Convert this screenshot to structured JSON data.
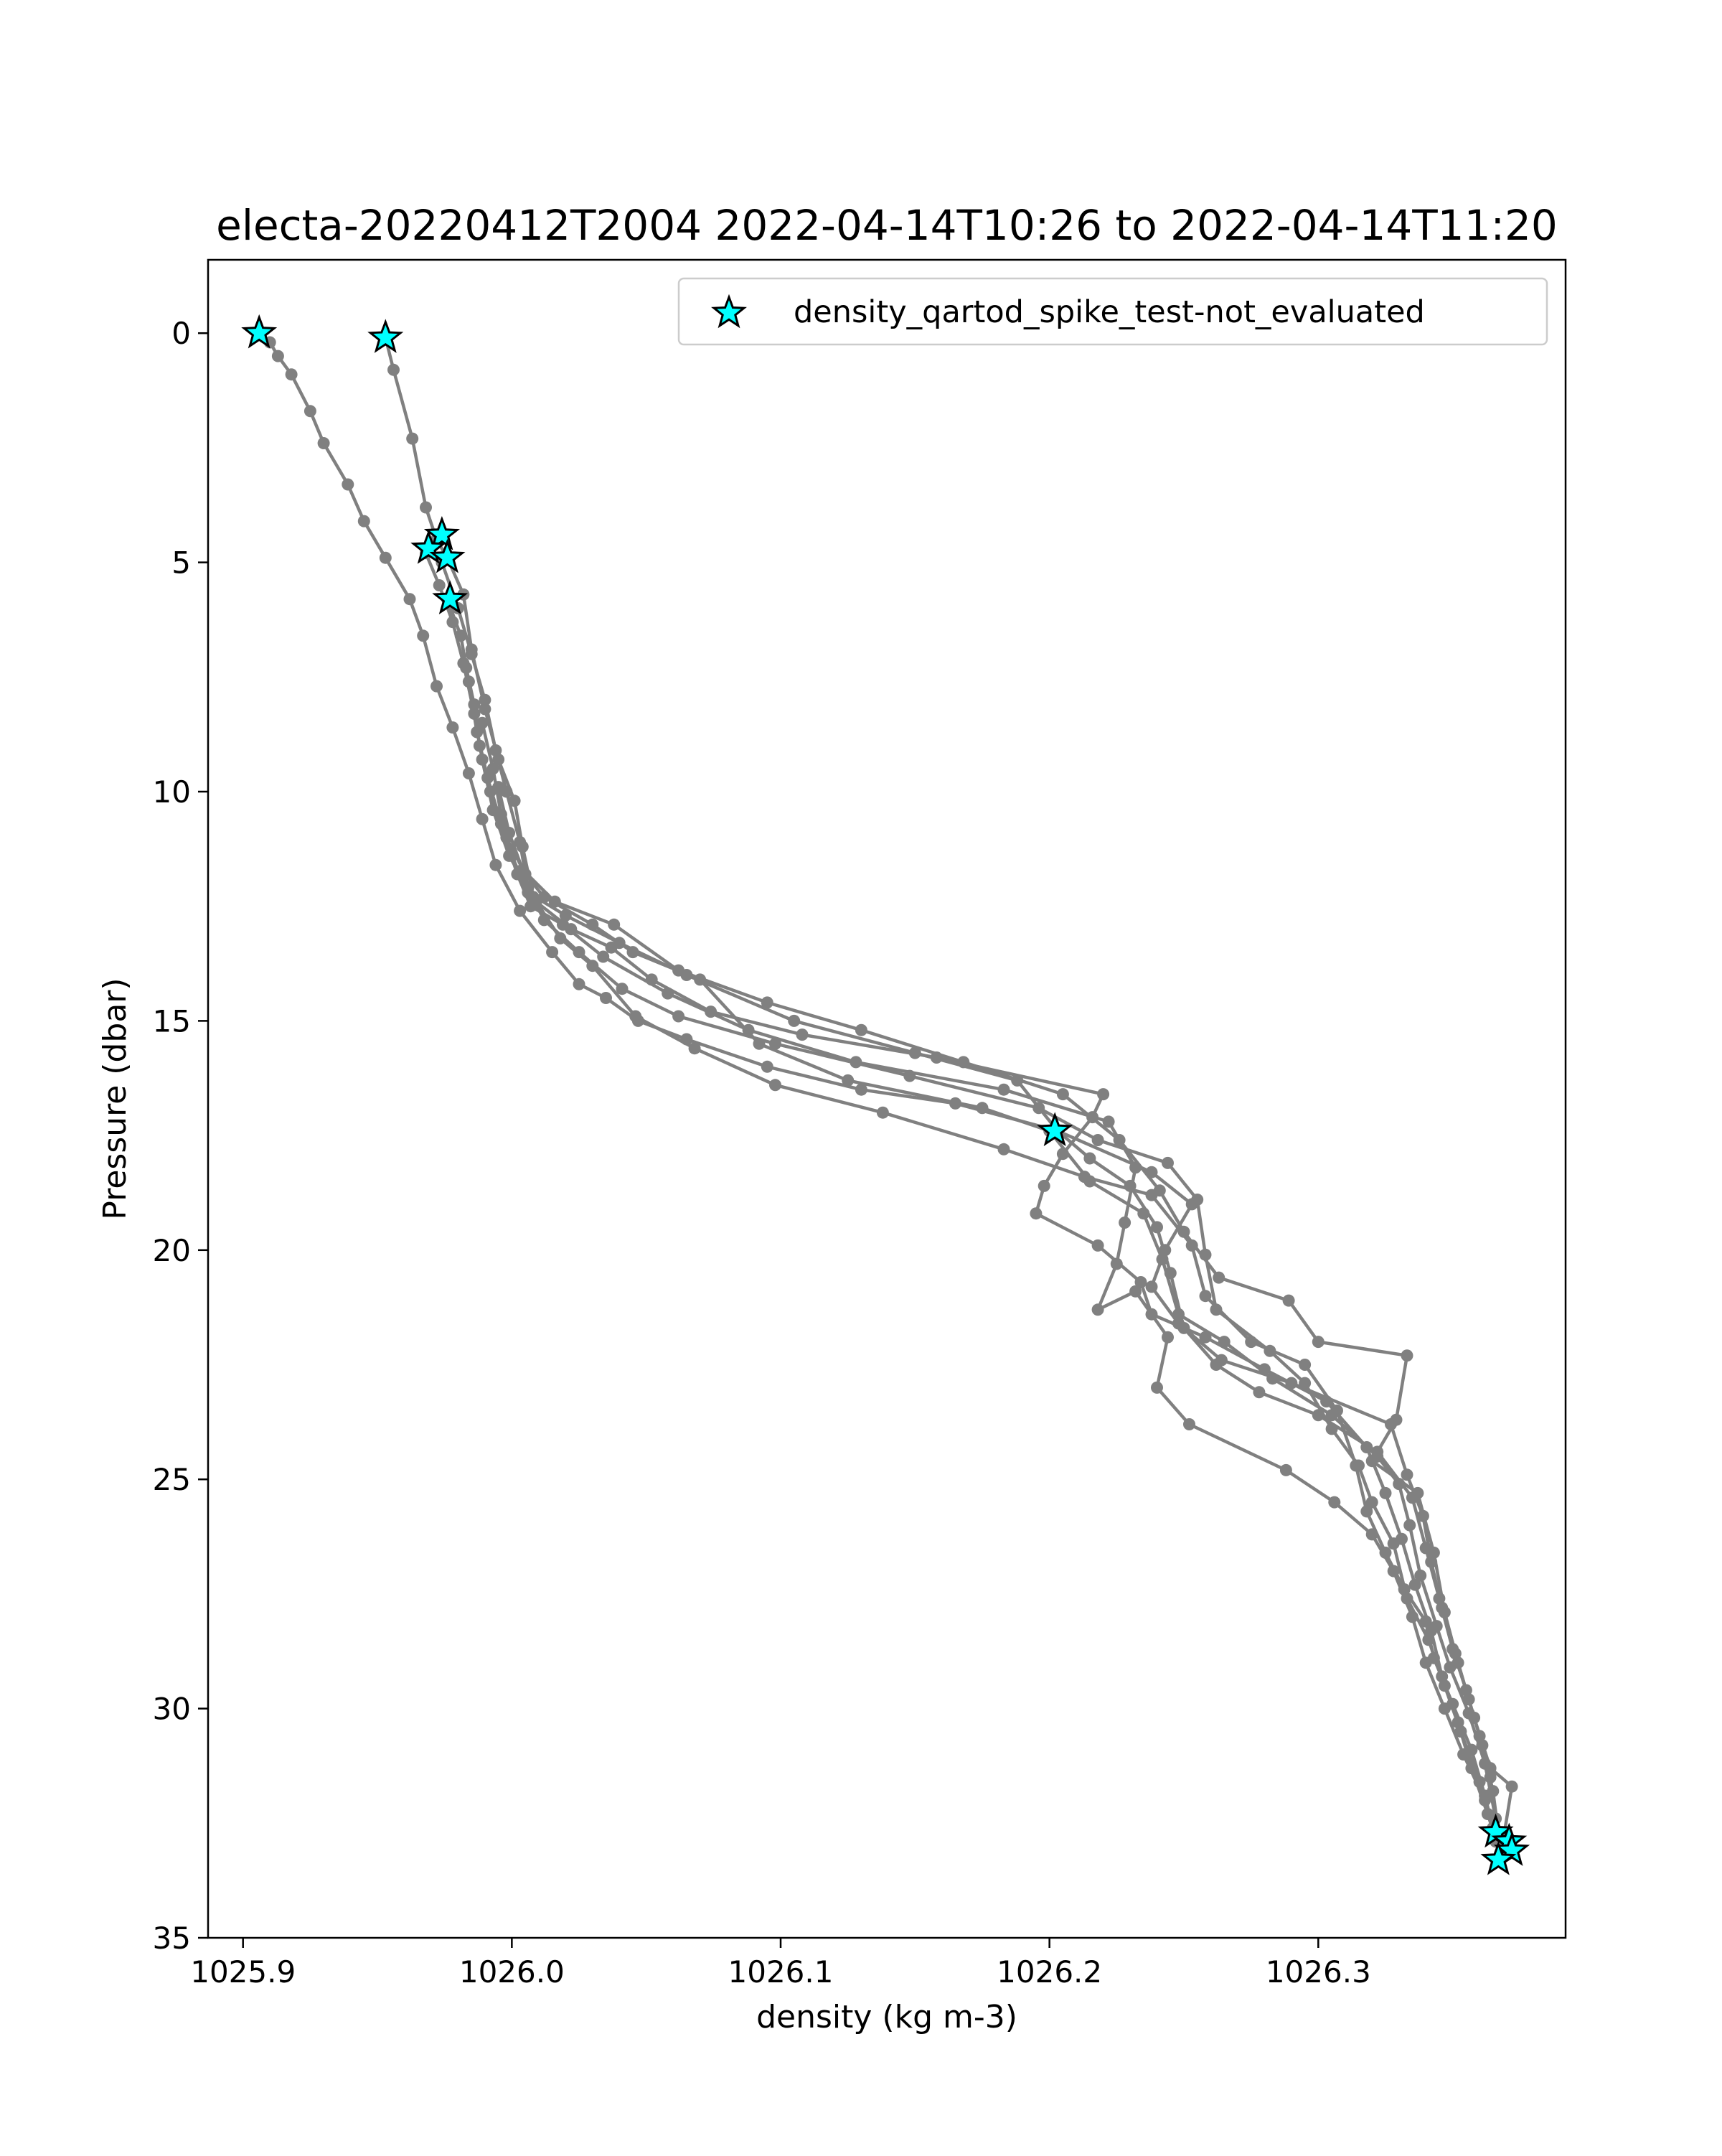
{
  "chart_data": {
    "type": "line",
    "title": "electa-20220412T2004 2022-04-14T10:26 to 2022-04-14T11:20",
    "xlabel": "density (kg m-3)",
    "ylabel": "Pressure (dbar)",
    "xlim": [
      1025.887,
      1026.392
    ],
    "ylim": [
      35,
      -1.6
    ],
    "y_inverted": true,
    "grid": false,
    "legend_position": "top-right",
    "x_ticks": [
      1025.9,
      1026.0,
      1026.1,
      1026.2,
      1026.3
    ],
    "x_tick_labels": [
      "1025.9",
      "1026.0",
      "1026.1",
      "1026.2",
      "1026.3"
    ],
    "y_ticks": [
      0,
      5,
      10,
      15,
      20,
      25,
      30,
      35
    ],
    "y_tick_labels": [
      "0",
      "5",
      "10",
      "15",
      "20",
      "25",
      "30",
      "35"
    ],
    "colors": {
      "profile_line": "#808080",
      "flag_marker": "#00ffff",
      "flag_edge": "#000000"
    },
    "series": [
      {
        "name": "",
        "style": "line-markers",
        "color": "#808080",
        "points": [
          [
            1025.906,
            0.0
          ],
          [
            1025.91,
            0.2
          ],
          [
            1025.913,
            0.5
          ],
          [
            1025.918,
            0.9
          ],
          [
            1025.925,
            1.7
          ],
          [
            1025.93,
            2.4
          ],
          [
            1025.939,
            3.3
          ],
          [
            1025.945,
            4.1
          ],
          [
            1025.953,
            4.9
          ],
          [
            1025.962,
            5.8
          ],
          [
            1025.967,
            6.6
          ],
          [
            1025.972,
            7.7
          ],
          [
            1025.978,
            8.6
          ],
          [
            1025.984,
            9.6
          ],
          [
            1025.989,
            10.6
          ],
          [
            1025.994,
            11.6
          ],
          [
            1026.003,
            12.6
          ],
          [
            1026.015,
            13.5
          ],
          [
            1026.025,
            14.2
          ],
          [
            1026.035,
            14.5
          ],
          [
            1026.047,
            15.0
          ],
          [
            1026.065,
            15.4
          ],
          [
            1026.095,
            16.0
          ],
          [
            1026.13,
            16.5
          ],
          [
            1026.165,
            16.8
          ],
          [
            1026.203,
            17.4
          ],
          [
            1026.215,
            18.0
          ],
          [
            1026.23,
            18.6
          ],
          [
            1026.24,
            19.5
          ],
          [
            1026.245,
            20.5
          ],
          [
            1026.25,
            21.7
          ],
          [
            1026.262,
            22.5
          ],
          [
            1026.278,
            23.1
          ],
          [
            1026.3,
            23.6
          ],
          [
            1026.322,
            24.4
          ],
          [
            1026.335,
            25.4
          ],
          [
            1026.34,
            26.5
          ],
          [
            1026.345,
            27.6
          ],
          [
            1026.35,
            28.7
          ],
          [
            1026.355,
            29.6
          ],
          [
            1026.36,
            30.6
          ],
          [
            1026.364,
            31.5
          ],
          [
            1026.367,
            32.7
          ],
          [
            1026.37,
            32.8
          ],
          [
            1026.371,
            33.0
          ],
          [
            1026.367,
            33.3
          ]
        ]
      },
      {
        "name": "",
        "style": "line-markers",
        "color": "#808080",
        "points": [
          [
            1025.953,
            0.1
          ],
          [
            1025.956,
            0.8
          ],
          [
            1025.963,
            2.3
          ],
          [
            1025.968,
            3.8
          ],
          [
            1025.972,
            4.5
          ],
          [
            1025.976,
            4.9
          ],
          [
            1025.982,
            5.7
          ],
          [
            1025.985,
            6.9
          ],
          [
            1025.99,
            8.2
          ],
          [
            1025.995,
            9.3
          ],
          [
            1026.001,
            10.2
          ],
          [
            1026.004,
            11.2
          ],
          [
            1026.008,
            12.3
          ],
          [
            1026.018,
            13.2
          ],
          [
            1026.03,
            13.8
          ],
          [
            1026.046,
            14.9
          ],
          [
            1026.068,
            15.6
          ],
          [
            1026.098,
            16.4
          ],
          [
            1026.138,
            17.0
          ],
          [
            1026.183,
            17.8
          ],
          [
            1026.213,
            18.4
          ],
          [
            1026.238,
            18.8
          ],
          [
            1026.253,
            19.9
          ],
          [
            1026.258,
            21.0
          ],
          [
            1026.275,
            22.0
          ],
          [
            1026.295,
            22.5
          ],
          [
            1026.307,
            23.5
          ],
          [
            1026.314,
            24.7
          ],
          [
            1026.318,
            25.7
          ],
          [
            1026.325,
            26.6
          ],
          [
            1026.332,
            27.4
          ],
          [
            1026.34,
            28.1
          ],
          [
            1026.343,
            28.9
          ],
          [
            1026.35,
            29.9
          ],
          [
            1026.357,
            30.9
          ],
          [
            1026.362,
            31.9
          ],
          [
            1026.365,
            32.6
          ]
        ]
      },
      {
        "name": "",
        "style": "line-markers",
        "color": "#808080",
        "points": [
          [
            1025.968,
            4.8
          ],
          [
            1025.973,
            5.5
          ],
          [
            1025.978,
            6.3
          ],
          [
            1025.982,
            7.2
          ],
          [
            1025.986,
            8.3
          ],
          [
            1025.989,
            9.3
          ],
          [
            1025.993,
            10.4
          ],
          [
            1025.999,
            11.4
          ],
          [
            1026.009,
            12.4
          ],
          [
            1026.022,
            13.0
          ],
          [
            1026.037,
            13.4
          ],
          [
            1026.052,
            14.1
          ],
          [
            1026.074,
            14.8
          ],
          [
            1026.108,
            15.3
          ],
          [
            1026.158,
            15.8
          ],
          [
            1026.22,
            16.6
          ],
          [
            1026.216,
            17.1
          ],
          [
            1026.205,
            17.9
          ],
          [
            1026.198,
            18.6
          ],
          [
            1026.195,
            19.2
          ],
          [
            1026.218,
            19.9
          ],
          [
            1026.234,
            20.7
          ],
          [
            1026.238,
            21.4
          ],
          [
            1026.258,
            21.9
          ],
          [
            1026.28,
            22.6
          ],
          [
            1026.303,
            23.3
          ],
          [
            1026.318,
            24.3
          ],
          [
            1026.325,
            25.3
          ],
          [
            1026.331,
            26.3
          ],
          [
            1026.336,
            27.3
          ],
          [
            1026.342,
            28.3
          ],
          [
            1026.346,
            29.3
          ],
          [
            1026.352,
            30.3
          ],
          [
            1026.357,
            31.3
          ],
          [
            1026.363,
            32.3
          ],
          [
            1026.368,
            33.2
          ]
        ]
      },
      {
        "name": "",
        "style": "line-markers",
        "color": "#808080",
        "points": [
          [
            1025.974,
            5.0
          ],
          [
            1025.98,
            6.0
          ],
          [
            1025.985,
            7.0
          ],
          [
            1025.99,
            8.0
          ],
          [
            1025.994,
            9.1
          ],
          [
            1025.998,
            10.0
          ],
          [
            1026.003,
            11.1
          ],
          [
            1026.006,
            12.1
          ],
          [
            1026.012,
            12.8
          ],
          [
            1026.025,
            13.5
          ],
          [
            1026.041,
            14.3
          ],
          [
            1026.062,
            14.9
          ],
          [
            1026.098,
            15.5
          ],
          [
            1026.148,
            16.2
          ],
          [
            1026.196,
            16.9
          ],
          [
            1026.218,
            17.6
          ],
          [
            1026.244,
            18.1
          ],
          [
            1026.255,
            18.9
          ],
          [
            1026.258,
            20.1
          ],
          [
            1026.262,
            21.3
          ],
          [
            1026.282,
            22.2
          ],
          [
            1026.295,
            22.9
          ],
          [
            1026.305,
            23.9
          ],
          [
            1026.315,
            24.7
          ],
          [
            1026.32,
            25.5
          ],
          [
            1026.328,
            26.4
          ],
          [
            1026.333,
            27.6
          ],
          [
            1026.341,
            28.5
          ],
          [
            1026.347,
            29.5
          ],
          [
            1026.353,
            30.5
          ],
          [
            1026.36,
            31.6
          ],
          [
            1026.366,
            32.8
          ]
        ]
      },
      {
        "name": "",
        "style": "line-markers",
        "color": "#808080",
        "points": [
          [
            1025.976,
            5.8
          ],
          [
            1025.981,
            6.6
          ],
          [
            1025.984,
            7.6
          ],
          [
            1025.987,
            8.7
          ],
          [
            1025.991,
            9.7
          ],
          [
            1025.996,
            10.7
          ],
          [
            1026.002,
            11.8
          ],
          [
            1026.007,
            12.5
          ],
          [
            1026.019,
            12.9
          ],
          [
            1026.034,
            13.6
          ],
          [
            1026.058,
            14.4
          ],
          [
            1026.088,
            15.2
          ],
          [
            1026.128,
            15.9
          ],
          [
            1026.183,
            16.5
          ],
          [
            1026.222,
            17.2
          ],
          [
            1026.232,
            18.2
          ],
          [
            1026.228,
            19.4
          ],
          [
            1026.225,
            20.3
          ],
          [
            1026.218,
            21.3
          ],
          [
            1026.232,
            20.9
          ],
          [
            1026.244,
            21.9
          ],
          [
            1026.24,
            23.0
          ],
          [
            1026.252,
            23.8
          ],
          [
            1026.288,
            24.8
          ],
          [
            1026.306,
            25.5
          ],
          [
            1026.32,
            26.2
          ],
          [
            1026.328,
            27.0
          ],
          [
            1026.335,
            28.0
          ],
          [
            1026.34,
            29.0
          ],
          [
            1026.347,
            30.0
          ],
          [
            1026.354,
            31.0
          ],
          [
            1026.362,
            32.0
          ],
          [
            1026.366,
            32.9
          ]
        ]
      },
      {
        "name": "",
        "style": "line-markers",
        "color": "#808080",
        "points": [
          [
            1025.983,
            7.3
          ],
          [
            1025.986,
            8.1
          ],
          [
            1025.988,
            9.0
          ],
          [
            1025.992,
            10.0
          ],
          [
            1025.998,
            11.0
          ],
          [
            1026.005,
            11.8
          ],
          [
            1026.012,
            12.3
          ],
          [
            1026.03,
            12.9
          ],
          [
            1026.045,
            13.5
          ],
          [
            1026.07,
            14.1
          ],
          [
            1026.092,
            15.5
          ],
          [
            1026.125,
            16.3
          ],
          [
            1026.175,
            16.9
          ],
          [
            1026.2,
            17.4
          ],
          [
            1026.215,
            18.5
          ],
          [
            1026.235,
            19.2
          ],
          [
            1026.242,
            20.2
          ],
          [
            1026.248,
            21.4
          ],
          [
            1026.265,
            22.0
          ],
          [
            1026.283,
            22.8
          ],
          [
            1026.305,
            23.6
          ],
          [
            1026.322,
            24.5
          ],
          [
            1026.33,
            25.1
          ],
          [
            1026.334,
            26.0
          ],
          [
            1026.338,
            27.1
          ],
          [
            1026.344,
            28.2
          ],
          [
            1026.349,
            29.1
          ],
          [
            1026.356,
            30.1
          ],
          [
            1026.362,
            31.2
          ],
          [
            1026.366,
            32.4
          ]
        ]
      },
      {
        "name": "",
        "style": "line-markers",
        "color": "#808080",
        "points": [
          [
            1025.989,
            8.5
          ],
          [
            1025.993,
            9.5
          ],
          [
            1025.996,
            10.5
          ],
          [
            1026.0,
            11.4
          ],
          [
            1026.006,
            12.2
          ],
          [
            1026.02,
            12.7
          ],
          [
            1026.04,
            13.3
          ],
          [
            1026.065,
            14.0
          ],
          [
            1026.105,
            15.0
          ],
          [
            1026.15,
            15.7
          ],
          [
            1026.188,
            16.3
          ],
          [
            1026.203,
            17.4
          ],
          [
            1026.238,
            18.3
          ],
          [
            1026.253,
            19.0
          ],
          [
            1026.243,
            20.0
          ],
          [
            1026.238,
            20.8
          ],
          [
            1026.248,
            21.6
          ],
          [
            1026.264,
            22.4
          ],
          [
            1026.29,
            22.9
          ],
          [
            1026.327,
            23.8
          ],
          [
            1026.333,
            24.9
          ],
          [
            1026.339,
            25.8
          ],
          [
            1026.342,
            26.8
          ],
          [
            1026.346,
            27.8
          ],
          [
            1026.351,
            28.8
          ],
          [
            1026.356,
            29.8
          ],
          [
            1026.361,
            30.8
          ],
          [
            1026.365,
            31.8
          ],
          [
            1026.367,
            32.7
          ]
        ]
      },
      {
        "name": "",
        "style": "line-markers",
        "color": "#808080",
        "points": [
          [
            1025.995,
            9.9
          ],
          [
            1025.999,
            10.9
          ],
          [
            1026.004,
            11.7
          ],
          [
            1026.016,
            12.4
          ],
          [
            1026.038,
            12.9
          ],
          [
            1026.062,
            13.9
          ],
          [
            1026.095,
            14.6
          ],
          [
            1026.13,
            15.2
          ],
          [
            1026.168,
            15.9
          ],
          [
            1026.205,
            16.6
          ],
          [
            1026.226,
            17.6
          ],
          [
            1026.241,
            18.7
          ],
          [
            1026.25,
            19.6
          ],
          [
            1026.263,
            20.6
          ],
          [
            1026.289,
            21.1
          ],
          [
            1026.3,
            22.0
          ],
          [
            1026.333,
            22.3
          ],
          [
            1026.329,
            23.7
          ],
          [
            1026.32,
            24.6
          ],
          [
            1026.337,
            25.3
          ],
          [
            1026.343,
            26.6
          ],
          [
            1026.347,
            27.9
          ],
          [
            1026.352,
            29.0
          ],
          [
            1026.358,
            30.2
          ],
          [
            1026.364,
            31.3
          ],
          [
            1026.372,
            31.7
          ],
          [
            1026.369,
            32.8
          ]
        ]
      }
    ],
    "flagged": {
      "name": "density_qartod_spike_test-not_evaluated",
      "marker": "star",
      "color": "#00ffff",
      "points": [
        [
          1025.906,
          0.0
        ],
        [
          1025.953,
          0.1
        ],
        [
          1025.974,
          4.4
        ],
        [
          1025.969,
          4.7
        ],
        [
          1025.976,
          4.9
        ],
        [
          1025.977,
          5.8
        ],
        [
          1026.202,
          17.4
        ],
        [
          1026.366,
          32.7
        ],
        [
          1026.371,
          32.9
        ],
        [
          1026.372,
          33.1
        ],
        [
          1026.367,
          33.3
        ]
      ]
    }
  }
}
